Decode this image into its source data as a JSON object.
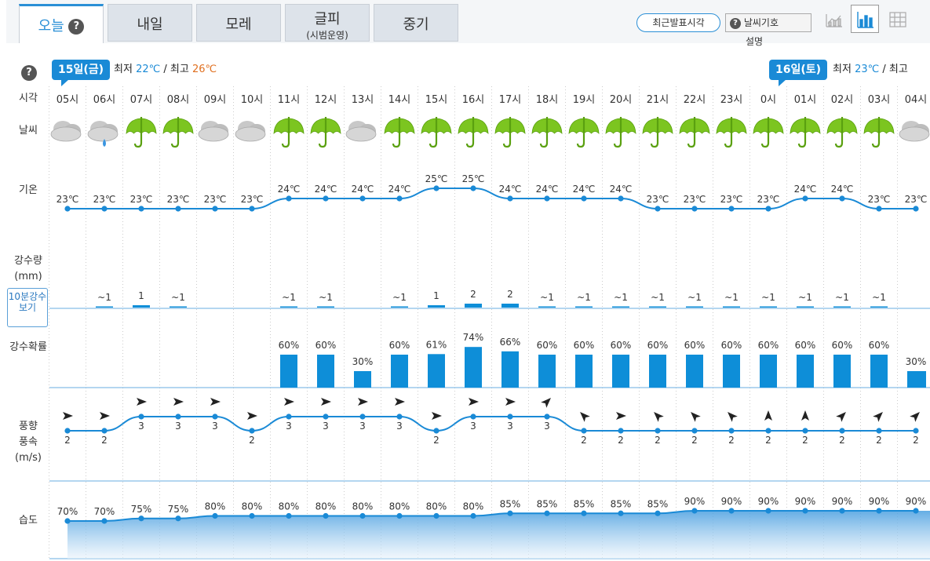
{
  "tabs": [
    {
      "label": "오늘",
      "active": true,
      "help": "?"
    },
    {
      "label": "내일"
    },
    {
      "label": "모레"
    },
    {
      "label": "글피",
      "sub": "(시범운영)"
    },
    {
      "label": "중기"
    }
  ],
  "toolbar": {
    "recent_btn": "최근발표시각",
    "legend_btn": "날씨기호",
    "legend_sub": "설명",
    "legend_help": "?"
  },
  "row_labels": {
    "help": "?",
    "time": "시각",
    "weather": "날씨",
    "temp": "기온",
    "precip_1": "강수량",
    "precip_2": "(mm)",
    "ten_min": "10분강수\n보기",
    "prob": "강수확률",
    "wind_1": "풍향",
    "wind_2": "풍속",
    "wind_3": "(m/s)",
    "humid": "습도"
  },
  "days": [
    {
      "badge": "15일(금)",
      "min_label": "최저",
      "min": "22℃",
      "sep": "/",
      "max_label": "최고",
      "max": "26℃"
    },
    {
      "badge": "16일(토)",
      "min_label": "최저",
      "min": "23℃",
      "sep": "/",
      "max_label": "최고"
    }
  ],
  "colors": {
    "accent": "#1a8ad6",
    "line": "#1a8ad6",
    "bar": "#0e8ed8",
    "umbrella": "#7cc520"
  },
  "chart_data": {
    "type": "line",
    "hours": [
      "05시",
      "06시",
      "07시",
      "08시",
      "09시",
      "10시",
      "11시",
      "12시",
      "13시",
      "14시",
      "15시",
      "16시",
      "17시",
      "18시",
      "19시",
      "20시",
      "21시",
      "22시",
      "23시",
      "0시",
      "01시",
      "02시",
      "03시",
      "04시"
    ],
    "weather_icons": [
      "cloudy",
      "cloudy-rain",
      "umbrella",
      "umbrella",
      "cloudy",
      "cloudy",
      "umbrella",
      "umbrella",
      "cloudy",
      "umbrella",
      "umbrella",
      "umbrella",
      "umbrella",
      "umbrella",
      "umbrella",
      "umbrella",
      "umbrella",
      "umbrella",
      "umbrella",
      "umbrella",
      "umbrella",
      "umbrella",
      "umbrella",
      "cloudy"
    ],
    "temperature": [
      23,
      23,
      23,
      23,
      23,
      23,
      24,
      24,
      24,
      24,
      25,
      25,
      24,
      24,
      24,
      24,
      23,
      23,
      23,
      23,
      24,
      24,
      23,
      23
    ],
    "temperature_labels": [
      "23℃",
      "23℃",
      "23℃",
      "23℃",
      "23℃",
      "23℃",
      "24℃",
      "24℃",
      "24℃",
      "24℃",
      "25℃",
      "25℃",
      "24℃",
      "24℃",
      "24℃",
      "24℃",
      "23℃",
      "23℃",
      "23℃",
      "23℃",
      "24℃",
      "24℃",
      "23℃",
      "23℃"
    ],
    "precipitation_labels": [
      "",
      "~1",
      "1",
      "~1",
      "",
      "",
      "~1",
      "~1",
      "",
      "~1",
      "1",
      "2",
      "2",
      "~1",
      "~1",
      "~1",
      "~1",
      "~1",
      "~1",
      "~1",
      "~1",
      "~1",
      "~1",
      ""
    ],
    "precipitation_mm": [
      0,
      0.5,
      1,
      0.5,
      0,
      0,
      0.5,
      0.5,
      0,
      0.5,
      1,
      2,
      2,
      0.5,
      0.5,
      0.5,
      0.5,
      0.5,
      0.5,
      0.5,
      0.5,
      0.5,
      0.5,
      0
    ],
    "precip_probability": [
      null,
      null,
      null,
      null,
      null,
      null,
      60,
      60,
      30,
      60,
      61,
      74,
      66,
      60,
      60,
      60,
      60,
      60,
      60,
      60,
      60,
      60,
      60,
      30
    ],
    "precip_probability_labels": [
      "",
      "",
      "",
      "",
      "",
      "",
      "60%",
      "60%",
      "30%",
      "60%",
      "61%",
      "74%",
      "66%",
      "60%",
      "60%",
      "60%",
      "60%",
      "60%",
      "60%",
      "60%",
      "60%",
      "60%",
      "60%",
      "30%"
    ],
    "wind_speed": [
      2,
      2,
      3,
      3,
      3,
      2,
      3,
      3,
      3,
      3,
      2,
      3,
      3,
      3,
      2,
      2,
      2,
      2,
      2,
      2,
      2,
      2,
      2,
      2
    ],
    "wind_direction_deg": [
      90,
      90,
      90,
      90,
      90,
      90,
      90,
      90,
      90,
      90,
      90,
      90,
      90,
      45,
      315,
      90,
      315,
      315,
      315,
      0,
      0,
      45,
      45,
      45
    ],
    "humidity": [
      70,
      70,
      75,
      75,
      80,
      80,
      80,
      80,
      80,
      80,
      80,
      80,
      85,
      85,
      85,
      85,
      85,
      90,
      90,
      90,
      90,
      90,
      90,
      90
    ],
    "humidity_labels": [
      "70%",
      "70%",
      "75%",
      "75%",
      "80%",
      "80%",
      "80%",
      "80%",
      "80%",
      "80%",
      "80%",
      "80%",
      "85%",
      "85%",
      "85%",
      "85%",
      "85%",
      "90%",
      "90%",
      "90%",
      "90%",
      "90%",
      "90%",
      "90%"
    ]
  }
}
